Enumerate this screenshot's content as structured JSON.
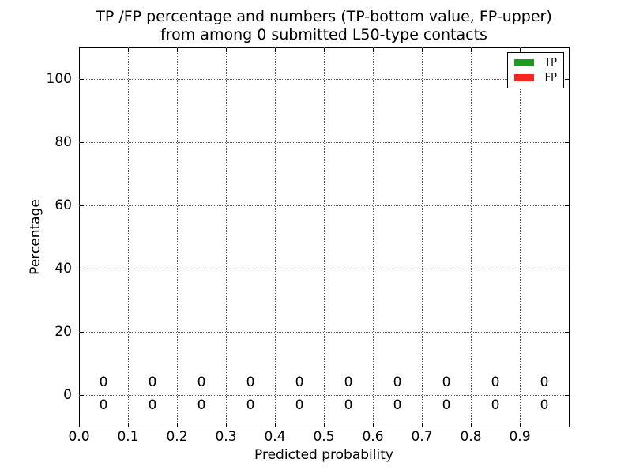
{
  "figure": {
    "background": "#ffffff"
  },
  "chart_data": {
    "type": "bar",
    "title_lines": [
      "TP /FP percentage and numbers (TP-bottom value, FP-upper)",
      "from among 0 submitted L50-type contacts"
    ],
    "xlabel": "Predicted probability",
    "ylabel": "Percentage",
    "xlim": [
      0.0,
      1.0
    ],
    "ylim": [
      -10,
      110
    ],
    "xtick_values": [
      0.0,
      0.1,
      0.2,
      0.3,
      0.4,
      0.5,
      0.6,
      0.7,
      0.8,
      0.9
    ],
    "xtick_labels": [
      "0.0",
      "0.1",
      "0.2",
      "0.3",
      "0.4",
      "0.5",
      "0.6",
      "0.7",
      "0.8",
      "0.9"
    ],
    "ytick_values": [
      0,
      20,
      40,
      60,
      80,
      100
    ],
    "ytick_labels": [
      "0",
      "20",
      "40",
      "60",
      "80",
      "100"
    ],
    "grid": {
      "enabled": true,
      "style": "dotted",
      "color": "#555555"
    },
    "bin_centers": [
      0.05,
      0.15,
      0.25,
      0.35,
      0.45,
      0.55,
      0.65,
      0.75,
      0.85,
      0.95
    ],
    "series": [
      {
        "name": "TP",
        "color": "#1f9a20",
        "label_row": "lower",
        "values": [
          0,
          0,
          0,
          0,
          0,
          0,
          0,
          0,
          0,
          0
        ]
      },
      {
        "name": "FP",
        "color": "#f92620",
        "label_row": "upper",
        "values": [
          0,
          0,
          0,
          0,
          0,
          0,
          0,
          0,
          0,
          0
        ]
      }
    ],
    "value_labels": {
      "upper_series": "FP",
      "lower_series": "TP"
    },
    "legend": {
      "position": "upper-right",
      "entries": [
        {
          "label": "TP",
          "color": "#1f9a20"
        },
        {
          "label": "FP",
          "color": "#f92620"
        }
      ]
    }
  }
}
